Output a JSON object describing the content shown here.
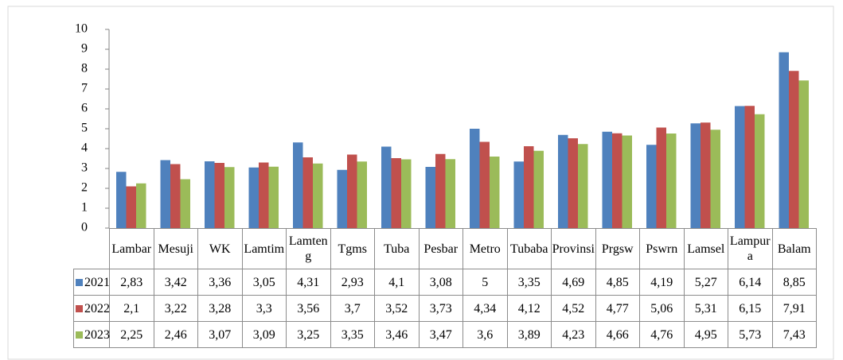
{
  "chart_data": {
    "type": "bar",
    "categories": [
      "Lambar",
      "Mesuji",
      "WK",
      "Lamtim",
      "Lamteng",
      "Tgms",
      "Tuba",
      "Pesbar",
      "Metro",
      "Tubaba",
      "Provinsi",
      "Prgsw",
      "Pswrn",
      "Lamsel",
      "Lampura",
      "Balam"
    ],
    "series": [
      {
        "name": "2021",
        "color": "#4f81bd",
        "values": [
          2.83,
          3.42,
          3.36,
          3.05,
          4.31,
          2.93,
          4.1,
          3.08,
          5,
          3.35,
          4.69,
          4.85,
          4.19,
          5.27,
          6.14,
          8.85
        ],
        "value_labels": [
          "2,83",
          "3,42",
          "3,36",
          "3,05",
          "4,31",
          "2,93",
          "4,1",
          "3,08",
          "5",
          "3,35",
          "4,69",
          "4,85",
          "4,19",
          "5,27",
          "6,14",
          "8,85"
        ]
      },
      {
        "name": "2022",
        "color": "#c0504d",
        "values": [
          2.1,
          3.22,
          3.28,
          3.3,
          3.56,
          3.7,
          3.52,
          3.73,
          4.34,
          4.12,
          4.52,
          4.77,
          5.06,
          5.31,
          6.15,
          7.91
        ],
        "value_labels": [
          "2,1",
          "3,22",
          "3,28",
          "3,3",
          "3,56",
          "3,7",
          "3,52",
          "3,73",
          "4,34",
          "4,12",
          "4,52",
          "4,77",
          "5,06",
          "5,31",
          "6,15",
          "7,91"
        ]
      },
      {
        "name": "2023",
        "color": "#9bbb59",
        "values": [
          2.25,
          2.46,
          3.07,
          3.09,
          3.25,
          3.35,
          3.46,
          3.47,
          3.6,
          3.89,
          4.23,
          4.66,
          4.76,
          4.95,
          5.73,
          7.43
        ],
        "value_labels": [
          "2,25",
          "2,46",
          "3,07",
          "3,09",
          "3,25",
          "3,35",
          "3,46",
          "3,47",
          "3,6",
          "3,89",
          "4,23",
          "4,66",
          "4,76",
          "4,95",
          "5,73",
          "7,43"
        ]
      }
    ],
    "ylim": [
      0,
      10
    ],
    "yticks": [
      0,
      1,
      2,
      3,
      4,
      5,
      6,
      7,
      8,
      9,
      10
    ],
    "grid": false
  }
}
